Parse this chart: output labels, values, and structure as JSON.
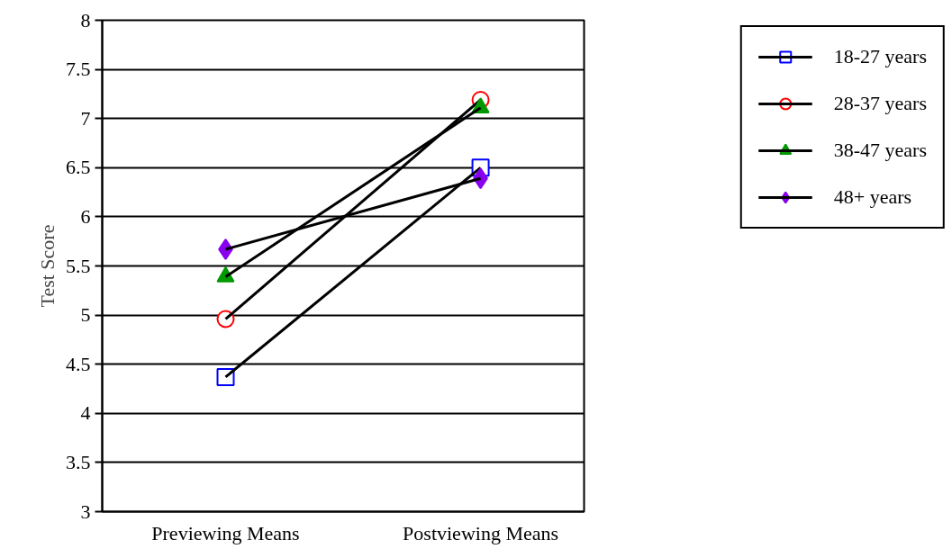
{
  "chart_data": {
    "type": "line",
    "ylabel": "Test Score",
    "categories": [
      "Previewing Means",
      "Postviewing Means"
    ],
    "series": [
      {
        "name": "18-27 years",
        "color": "#0000ff",
        "marker": "square",
        "values": [
          4.37,
          6.5
        ]
      },
      {
        "name": "28-37 years",
        "color": "#ff0000",
        "marker": "circle",
        "values": [
          4.96,
          7.19
        ]
      },
      {
        "name": "38-47 years",
        "color": "#009900",
        "marker": "triangle",
        "values": [
          5.39,
          7.11
        ]
      },
      {
        "name": "48+ years",
        "color": "#8800ee",
        "marker": "diamond",
        "values": [
          5.67,
          6.39
        ]
      }
    ],
    "ylim": [
      3,
      8
    ],
    "yticks": [
      3,
      3.5,
      4,
      4.5,
      5,
      5.5,
      6,
      6.5,
      7,
      7.5,
      8
    ],
    "grid": "y",
    "legend": "top right"
  }
}
